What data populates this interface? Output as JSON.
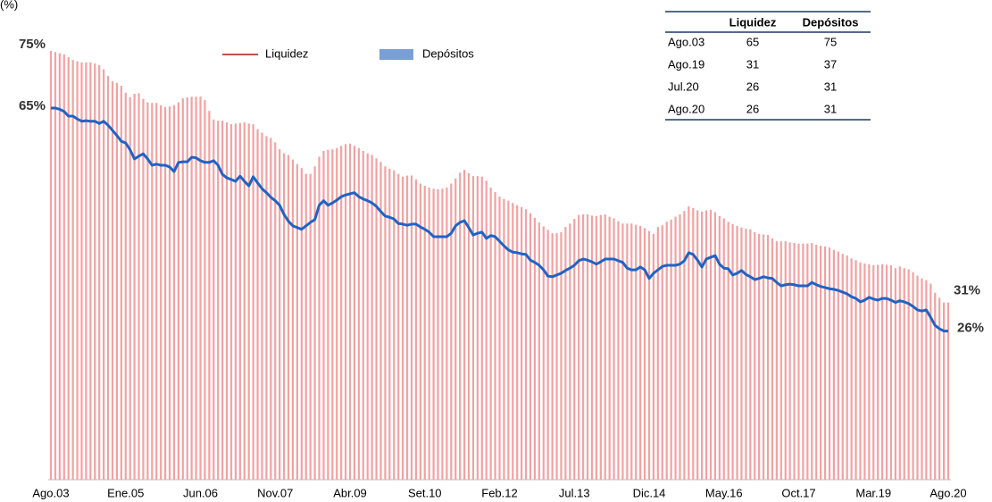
{
  "chart_data": {
    "type": "bar_line",
    "y_label": "(%)",
    "categories": [
      "Ago.03",
      null,
      null,
      null,
      null,
      null,
      null,
      null,
      null,
      null,
      null,
      null,
      null,
      null,
      null,
      null,
      null,
      "Ene.05",
      null,
      null,
      null,
      null,
      null,
      null,
      null,
      null,
      null,
      null,
      null,
      null,
      null,
      null,
      null,
      null,
      "Jun.06",
      null,
      null,
      null,
      null,
      null,
      null,
      null,
      null,
      null,
      null,
      null,
      null,
      null,
      null,
      null,
      null,
      "Nov.07",
      null,
      null,
      null,
      null,
      null,
      null,
      null,
      null,
      null,
      null,
      null,
      null,
      null,
      null,
      null,
      null,
      "Abr.09",
      null,
      null,
      null,
      null,
      null,
      null,
      null,
      null,
      null,
      null,
      null,
      null,
      null,
      null,
      null,
      null,
      "Set.10",
      null,
      null,
      null,
      null,
      null,
      null,
      null,
      null,
      null,
      null,
      null,
      null,
      null,
      null,
      null,
      null,
      "Feb.12",
      null,
      null,
      null,
      null,
      null,
      null,
      null,
      null,
      null,
      null,
      null,
      null,
      null,
      null,
      null,
      null,
      "Jul.13",
      null,
      null,
      null,
      null,
      null,
      null,
      null,
      null,
      null,
      null,
      null,
      null,
      null,
      null,
      null,
      null,
      "Dic.14",
      null,
      null,
      null,
      null,
      null,
      null,
      null,
      null,
      null,
      null,
      null,
      null,
      null,
      null,
      null,
      null,
      "May.16",
      null,
      null,
      null,
      null,
      null,
      null,
      null,
      null,
      null,
      null,
      null,
      null,
      null,
      null,
      null,
      null,
      "Oct.17",
      null,
      null,
      null,
      null,
      null,
      null,
      null,
      null,
      null,
      null,
      null,
      null,
      null,
      null,
      null,
      null,
      "Mar.19",
      null,
      null,
      null,
      null,
      null,
      null,
      null,
      null,
      null,
      null,
      null,
      null,
      null,
      null,
      null,
      null,
      "Ago.20"
    ],
    "series": [
      {
        "name": "Liquidez",
        "type": "line",
        "color": "#1f63c6",
        "legend_color": "#c0504d",
        "values": [
          65.0,
          65.0,
          64.8,
          64.4,
          63.6,
          63.6,
          63.1,
          62.7,
          62.8,
          62.7,
          62.7,
          62.3,
          62.7,
          62.0,
          61.1,
          60.2,
          59.2,
          58.9,
          57.7,
          56.1,
          56.6,
          57.0,
          56.1,
          55.0,
          55.2,
          55.0,
          55.0,
          54.7,
          53.9,
          55.5,
          55.6,
          55.6,
          56.4,
          56.3,
          55.8,
          55.5,
          55.5,
          55.8,
          55.0,
          53.4,
          52.8,
          52.5,
          52.2,
          53.1,
          52.2,
          51.4,
          53.0,
          51.9,
          50.9,
          50.2,
          49.4,
          48.8,
          48.0,
          46.4,
          45.2,
          44.4,
          44.1,
          43.8,
          44.4,
          45.0,
          45.5,
          48.0,
          48.8,
          48.0,
          48.4,
          48.9,
          49.5,
          49.8,
          50.0,
          50.2,
          49.5,
          49.1,
          48.8,
          48.4,
          47.8,
          46.9,
          46.1,
          45.9,
          45.6,
          44.8,
          44.7,
          44.5,
          44.7,
          44.7,
          44.2,
          43.8,
          43.3,
          42.5,
          42.5,
          42.5,
          42.5,
          43.1,
          44.4,
          45.0,
          45.3,
          44.1,
          42.8,
          43.1,
          43.3,
          42.2,
          42.7,
          42.5,
          41.7,
          40.9,
          40.2,
          39.8,
          39.7,
          39.5,
          39.4,
          38.4,
          38.0,
          37.5,
          36.7,
          35.6,
          35.5,
          35.8,
          36.1,
          36.6,
          37.0,
          37.5,
          38.3,
          38.6,
          38.4,
          38.1,
          37.7,
          38.1,
          38.6,
          38.6,
          38.6,
          38.3,
          38.0,
          37.0,
          36.7,
          36.7,
          37.2,
          36.7,
          35.2,
          36.1,
          36.7,
          37.3,
          37.5,
          37.5,
          37.5,
          37.7,
          38.3,
          39.7,
          39.4,
          38.4,
          37.2,
          38.6,
          38.9,
          39.2,
          37.7,
          37.0,
          36.9,
          35.8,
          36.1,
          36.6,
          35.9,
          35.5,
          35.0,
          35.2,
          35.5,
          35.3,
          35.2,
          34.5,
          33.9,
          34.1,
          34.2,
          34.1,
          33.9,
          33.9,
          33.9,
          34.5,
          34.1,
          33.8,
          33.6,
          33.4,
          33.3,
          33.1,
          32.8,
          32.5,
          32.0,
          31.7,
          31.1,
          31.4,
          31.9,
          31.6,
          31.4,
          31.7,
          31.7,
          31.4,
          31.0,
          31.3,
          31.1,
          30.8,
          30.3,
          29.7,
          29.5,
          29.7,
          28.4,
          27.0,
          26.4,
          26.0,
          26.0
        ]
      },
      {
        "name": "Depósitos",
        "type": "bar",
        "color": "#f2a2a2",
        "legend_color": "#7a9fd6",
        "values": [
          75.0,
          74.8,
          74.6,
          74.4,
          73.9,
          73.4,
          73.2,
          73.0,
          73.0,
          73.0,
          72.8,
          72.5,
          71.8,
          70.6,
          69.7,
          69.4,
          68.9,
          67.7,
          66.9,
          67.5,
          67.6,
          66.6,
          66.0,
          65.9,
          65.9,
          65.5,
          65.2,
          65.3,
          65.5,
          66.0,
          66.7,
          66.9,
          67.0,
          67.0,
          67.0,
          66.4,
          64.5,
          63.0,
          62.8,
          62.8,
          62.5,
          62.2,
          62.3,
          62.4,
          62.5,
          62.3,
          62.2,
          61.3,
          60.7,
          60.1,
          59.8,
          59.0,
          57.8,
          57.1,
          56.8,
          56.0,
          55.2,
          54.5,
          53.5,
          53.5,
          54.8,
          56.5,
          57.5,
          57.7,
          57.8,
          58.0,
          58.4,
          58.7,
          58.8,
          58.4,
          58.0,
          57.5,
          57.1,
          56.8,
          56.2,
          55.6,
          54.8,
          54.4,
          54.1,
          53.5,
          53.0,
          53.2,
          53.2,
          52.5,
          51.8,
          51.4,
          51.1,
          50.9,
          50.8,
          50.9,
          51.1,
          51.8,
          52.7,
          53.7,
          54.2,
          53.6,
          53.1,
          53.1,
          53.0,
          52.3,
          51.1,
          50.3,
          49.5,
          49.1,
          48.8,
          48.4,
          48.0,
          47.7,
          47.3,
          46.6,
          45.8,
          45.0,
          44.3,
          43.7,
          43.1,
          43.1,
          43.3,
          44.2,
          44.8,
          45.6,
          46.3,
          46.4,
          46.4,
          46.2,
          46.1,
          46.3,
          46.4,
          46.0,
          45.7,
          45.2,
          44.8,
          44.8,
          44.8,
          44.6,
          44.4,
          44.0,
          43.5,
          43.0,
          44.2,
          44.5,
          45.1,
          45.5,
          46.0,
          46.4,
          47.0,
          47.8,
          47.5,
          47.1,
          46.9,
          47.1,
          47.2,
          46.8,
          46.1,
          45.7,
          45.1,
          44.7,
          44.4,
          44.1,
          43.9,
          43.8,
          43.3,
          43.0,
          42.9,
          42.8,
          42.2,
          41.7,
          41.7,
          41.7,
          41.5,
          41.4,
          41.3,
          41.3,
          41.3,
          41.4,
          41.1,
          40.9,
          40.8,
          40.6,
          40.2,
          39.9,
          39.5,
          39.2,
          38.7,
          38.4,
          38.0,
          37.8,
          37.7,
          37.5,
          37.6,
          37.7,
          37.6,
          37.5,
          37.0,
          37.3,
          37.0,
          36.8,
          36.3,
          35.7,
          35.2,
          34.9,
          34.3,
          32.7,
          31.8,
          31.0,
          31.0
        ]
      }
    ],
    "ylim": [
      0,
      80
    ],
    "annotations": [
      {
        "text": "75%",
        "value": 75,
        "at": "Ago.03"
      },
      {
        "text": "65%",
        "value": 65,
        "at": "Ago.03"
      },
      {
        "text": "31%",
        "value": 31,
        "at": "Ago.20"
      },
      {
        "text": "26%",
        "value": 26,
        "at": "Ago.20"
      }
    ],
    "table": {
      "columns": [
        "Liquidez",
        "Depósitos"
      ],
      "rows": [
        {
          "label": "Ago.03",
          "values": [
            65,
            75
          ]
        },
        {
          "label": "Ago.19",
          "values": [
            31,
            37
          ]
        },
        {
          "label": "Jul.20",
          "values": [
            26,
            31
          ]
        },
        {
          "label": "Ago.20",
          "values": [
            26,
            31
          ]
        }
      ]
    }
  }
}
